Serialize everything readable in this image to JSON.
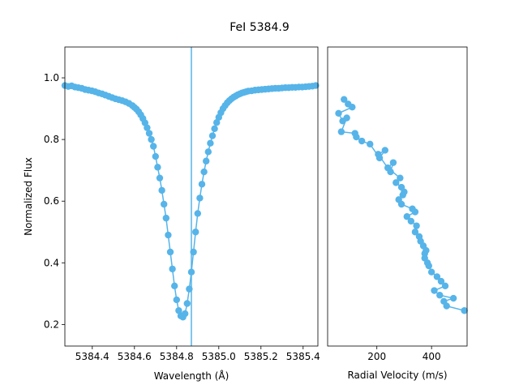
{
  "chart_data": {
    "title": "FeI 5384.9",
    "color": "#56b4e9",
    "panels": [
      {
        "type": "line",
        "xlabel": "Wavelength (Å)",
        "ylabel": "Normalized Flux",
        "xlim": [
          5384.27,
          5385.47
        ],
        "ylim": [
          0.13,
          1.1
        ],
        "xticks": [
          5384.4,
          5384.6,
          5384.8,
          5385.0,
          5385.2,
          5385.4
        ],
        "xtick_labels": [
          "5384.4",
          "5384.6",
          "5384.8",
          "5385.0",
          "5385.2",
          "5385.4"
        ],
        "yticks": [
          0.2,
          0.4,
          0.6,
          0.8,
          1.0
        ],
        "ytick_labels": [
          "0.2",
          "0.4",
          "0.6",
          "0.8",
          "1.0"
        ],
        "vline_x": 5384.87,
        "legend": "none",
        "grid": false,
        "series": [
          {
            "marker": "circle",
            "x": [
              5384.27,
              5384.286,
              5384.302,
              5384.318,
              5384.334,
              5384.35,
              5384.366,
              5384.382,
              5384.398,
              5384.414,
              5384.43,
              5384.446,
              5384.462,
              5384.478,
              5384.494,
              5384.51,
              5384.526,
              5384.542,
              5384.558,
              5384.574,
              5384.59,
              5384.6,
              5384.61,
              5384.62,
              5384.63,
              5384.64,
              5384.65,
              5384.66,
              5384.67,
              5384.68,
              5384.69,
              5384.7,
              5384.71,
              5384.72,
              5384.73,
              5384.74,
              5384.75,
              5384.76,
              5384.77,
              5384.78,
              5384.79,
              5384.8,
              5384.81,
              5384.82,
              5384.83,
              5384.84,
              5384.85,
              5384.86,
              5384.87,
              5384.88,
              5384.89,
              5384.9,
              5384.91,
              5384.92,
              5384.93,
              5384.94,
              5384.95,
              5384.96,
              5384.97,
              5384.98,
              5384.99,
              5385.0,
              5385.01,
              5385.02,
              5385.03,
              5385.04,
              5385.05,
              5385.06,
              5385.07,
              5385.08,
              5385.09,
              5385.1,
              5385.11,
              5385.12,
              5385.13,
              5385.14,
              5385.156,
              5385.172,
              5385.188,
              5385.204,
              5385.22,
              5385.236,
              5385.252,
              5385.268,
              5385.284,
              5385.3,
              5385.316,
              5385.332,
              5385.348,
              5385.364,
              5385.38,
              5385.396,
              5385.412,
              5385.428,
              5385.444,
              5385.46
            ],
            "y": [
              0.975,
              0.972,
              0.974,
              0.97,
              0.968,
              0.966,
              0.962,
              0.96,
              0.958,
              0.955,
              0.951,
              0.948,
              0.944,
              0.94,
              0.936,
              0.932,
              0.929,
              0.926,
              0.922,
              0.917,
              0.91,
              0.904,
              0.898,
              0.89,
              0.88,
              0.868,
              0.854,
              0.838,
              0.82,
              0.8,
              0.778,
              0.745,
              0.71,
              0.675,
              0.635,
              0.59,
              0.545,
              0.49,
              0.435,
              0.38,
              0.325,
              0.28,
              0.245,
              0.228,
              0.224,
              0.235,
              0.268,
              0.315,
              0.37,
              0.435,
              0.5,
              0.56,
              0.61,
              0.655,
              0.695,
              0.73,
              0.76,
              0.788,
              0.812,
              0.835,
              0.855,
              0.872,
              0.887,
              0.9,
              0.91,
              0.919,
              0.926,
              0.932,
              0.937,
              0.941,
              0.945,
              0.948,
              0.951,
              0.953,
              0.955,
              0.957,
              0.958,
              0.96,
              0.961,
              0.962,
              0.963,
              0.964,
              0.965,
              0.966,
              0.966,
              0.967,
              0.968,
              0.968,
              0.969,
              0.969,
              0.97,
              0.97,
              0.971,
              0.972,
              0.973,
              0.975
            ]
          }
        ]
      },
      {
        "type": "line",
        "xlabel": "Radial Velocity (m/s)",
        "ylabel": "",
        "xlim": [
          20,
          530
        ],
        "ylim": [
          0.13,
          1.1
        ],
        "xticks": [
          200,
          400
        ],
        "xtick_labels": [
          "200",
          "400"
        ],
        "yticks": [],
        "legend": "none",
        "grid": false,
        "series": [
          {
            "marker": "circle",
            "x": [
              80,
              95,
              110,
              60,
              75,
              90,
              70,
              120,
              125,
              145,
              175,
              210,
              230,
              205,
              250,
              260,
              240,
              285,
              270,
              290,
              300,
              295,
              280,
              290,
              330,
              340,
              310,
              325,
              345,
              340,
              355,
              360,
              370,
              380,
              375,
              375,
              385,
              390,
              400,
              420,
              435,
              450,
              410,
              430,
              480,
              445,
              455,
              520
            ],
            "y": [
              0.93,
              0.915,
              0.905,
              0.885,
              0.86,
              0.87,
              0.825,
              0.82,
              0.808,
              0.795,
              0.785,
              0.74,
              0.765,
              0.752,
              0.695,
              0.725,
              0.708,
              0.675,
              0.66,
              0.645,
              0.63,
              0.62,
              0.605,
              0.59,
              0.575,
              0.565,
              0.55,
              0.535,
              0.52,
              0.5,
              0.485,
              0.47,
              0.455,
              0.44,
              0.43,
              0.415,
              0.4,
              0.39,
              0.37,
              0.355,
              0.34,
              0.325,
              0.31,
              0.295,
              0.285,
              0.275,
              0.26,
              0.245
            ]
          }
        ]
      }
    ]
  }
}
